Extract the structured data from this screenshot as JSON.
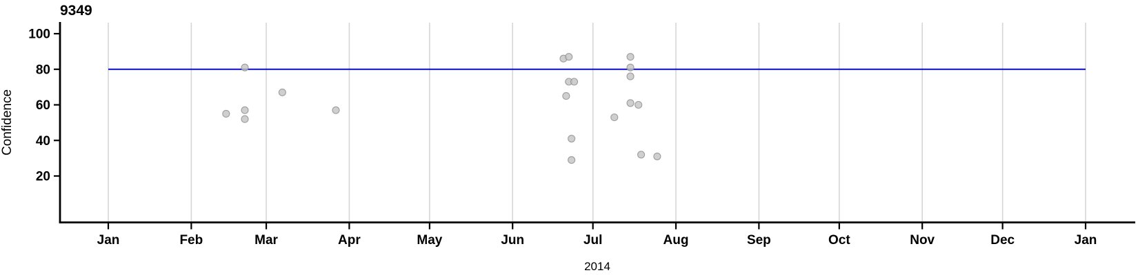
{
  "chart_data": {
    "type": "scatter",
    "title": "9349",
    "xlabel": "2014",
    "ylabel": "Confidence",
    "legend": "none",
    "grid": "vertical-monthly-only",
    "x_axis": {
      "kind": "time",
      "start_date": "2014-01-01",
      "end_date": "2015-01-01",
      "tick_labels": [
        "Jan",
        "Feb",
        "Mar",
        "Apr",
        "May",
        "Jun",
        "Jul",
        "Aug",
        "Sep",
        "Oct",
        "Nov",
        "Dec",
        "Jan"
      ]
    },
    "y_axis": {
      "ticks": [
        20,
        40,
        60,
        80,
        100
      ],
      "ylim": [
        -6,
        106
      ]
    },
    "reference_line": {
      "y": 80,
      "color": "#0b0bc8",
      "span": [
        "2014-01-01",
        "2015-01-01"
      ]
    },
    "points": [
      {
        "date": "2014-02-14",
        "confidence": 55
      },
      {
        "date": "2014-02-21",
        "confidence": 57
      },
      {
        "date": "2014-02-21",
        "confidence": 52
      },
      {
        "date": "2014-02-21",
        "confidence": 81
      },
      {
        "date": "2014-03-07",
        "confidence": 67
      },
      {
        "date": "2014-03-27",
        "confidence": 57
      },
      {
        "date": "2014-06-20",
        "confidence": 86
      },
      {
        "date": "2014-06-22",
        "confidence": 87
      },
      {
        "date": "2014-06-22",
        "confidence": 73
      },
      {
        "date": "2014-06-24",
        "confidence": 73
      },
      {
        "date": "2014-06-21",
        "confidence": 65
      },
      {
        "date": "2014-06-23",
        "confidence": 41
      },
      {
        "date": "2014-06-23",
        "confidence": 29
      },
      {
        "date": "2014-07-15",
        "confidence": 87
      },
      {
        "date": "2014-07-15",
        "confidence": 81
      },
      {
        "date": "2014-07-15",
        "confidence": 76
      },
      {
        "date": "2014-07-15",
        "confidence": 61
      },
      {
        "date": "2014-07-18",
        "confidence": 60
      },
      {
        "date": "2014-07-09",
        "confidence": 53
      },
      {
        "date": "2014-07-19",
        "confidence": 32
      },
      {
        "date": "2014-07-25",
        "confidence": 31
      }
    ],
    "colors": {
      "background": "#ffffff",
      "gridline": "#d6d6d6",
      "axis": "#000000",
      "reference_line": "#0b0bc8",
      "point_fill": "#c3c3c3",
      "point_stroke": "#909090"
    }
  }
}
